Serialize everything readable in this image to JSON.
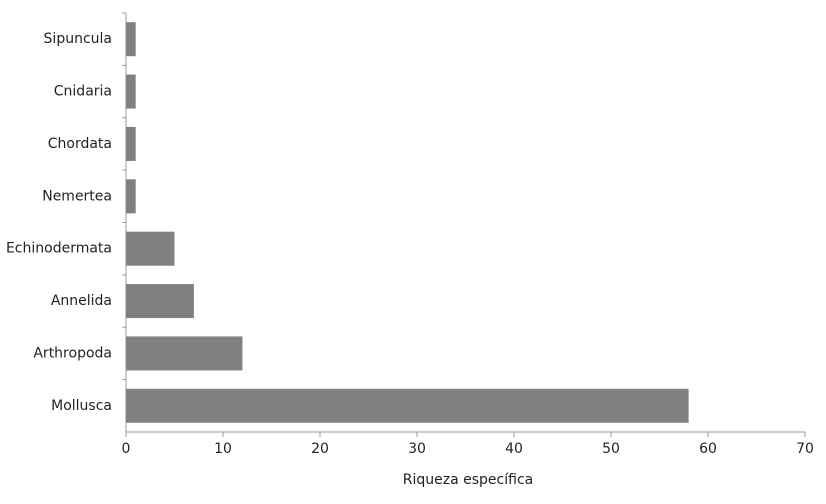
{
  "chart_data": {
    "type": "hbar",
    "x_label": "Riqueza específica",
    "categories": [
      "Sipuncula",
      "Cnidaria",
      "Chordata",
      "Nemertea",
      "Echinodermata",
      "Annelida",
      "Arthropoda",
      "Mollusca"
    ],
    "values": [
      1,
      1,
      1,
      1,
      5,
      7,
      12,
      58
    ],
    "color": "#808083",
    "xlim": [
      0,
      70
    ],
    "xticks": [
      0,
      10,
      20,
      30,
      40,
      50,
      60,
      70
    ],
    "grid": false
  }
}
